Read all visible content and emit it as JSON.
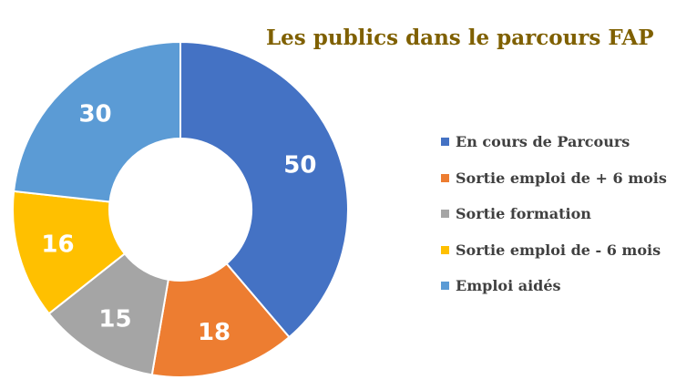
{
  "chart_data": {
    "type": "pie",
    "title": "Les publics dans le parcours FAP",
    "categories": [
      "En cours de Parcours",
      "Sortie emploi de + 6 mois",
      "Sortie formation",
      "Sortie emploi de - 6 mois",
      "Emploi aidés"
    ],
    "values": [
      50,
      18,
      15,
      16,
      30
    ],
    "colors": [
      "#4472c4",
      "#ed7d31",
      "#a5a5a5",
      "#ffc000",
      "#5b9bd5"
    ],
    "legend_position": "right",
    "donut": true,
    "label_color": "#ffffff",
    "title_color": "#7f6000"
  }
}
